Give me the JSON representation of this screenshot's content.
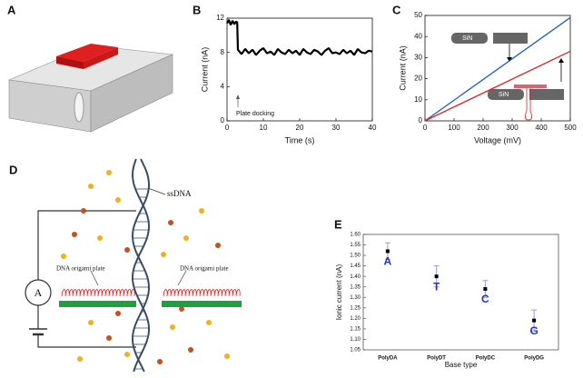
{
  "panel_labels": [
    "A",
    "B",
    "C",
    "D",
    "E"
  ],
  "chart_data": [
    {
      "type": "line",
      "x_label": "Time (s)",
      "y_label": "Current (nA)",
      "annotations": [
        "Plate docking"
      ],
      "x": [
        0,
        0.5,
        1,
        1.5,
        2,
        2.5,
        2.8,
        3,
        4,
        5,
        6,
        7,
        8,
        9,
        10,
        11,
        12,
        13,
        14,
        15,
        16,
        17,
        18,
        19,
        20,
        21,
        22,
        23,
        24,
        25,
        26,
        27,
        28,
        29,
        30,
        31,
        32,
        33,
        34,
        35,
        36,
        37,
        38,
        39,
        40
      ],
      "series": [
        {
          "color": "#000000",
          "values": [
            11.4,
            11.8,
            11.2,
            11.7,
            11.3,
            11.6,
            11.5,
            8.3,
            7.8,
            8.4,
            7.9,
            8.3,
            7.7,
            8.2,
            8.5,
            7.9,
            8.1,
            7.7,
            8.4,
            8.0,
            7.8,
            8.3,
            7.9,
            8.2,
            7.7,
            8.4,
            8.0,
            7.8,
            8.3,
            8.1,
            7.7,
            8.2,
            8.5,
            7.9,
            8.0,
            7.8,
            8.3,
            7.9,
            8.2,
            7.7,
            8.4,
            8.0,
            7.9,
            8.2,
            8.1
          ]
        }
      ],
      "xlim": [
        0,
        40
      ],
      "xticks": [
        0,
        10,
        20,
        30,
        40
      ],
      "ylim": [
        0,
        12
      ],
      "yticks": [
        0,
        4,
        8,
        12
      ]
    },
    {
      "type": "line",
      "x_label": "Voltage (mV)",
      "y_label": "Current (nA)",
      "annotations": [
        "SiN",
        "SiN"
      ],
      "x": [
        0,
        500
      ],
      "series": [
        {
          "color": "#1f5fbf",
          "values": [
            0,
            49
          ]
        },
        {
          "color": "#e02020",
          "values": [
            0,
            33
          ]
        }
      ],
      "xlim": [
        0,
        500
      ],
      "xticks": [
        0,
        100,
        200,
        300,
        400,
        500
      ],
      "ylim": [
        0,
        50
      ],
      "yticks": [
        0,
        10,
        20,
        30,
        40,
        50
      ]
    },
    {
      "type": "errorbar",
      "x_label": "Base type",
      "y_label": "Ionic current (nA)",
      "categories": [
        "PolyDA",
        "PolyDT",
        "PolyDC",
        "PolyDG"
      ],
      "values": [
        1.52,
        1.4,
        1.34,
        1.19
      ],
      "errors": [
        0.04,
        0.05,
        0.04,
        0.05
      ],
      "point_labels": [
        "A",
        "T",
        "C",
        "G"
      ],
      "color": "#000000",
      "error_color": "#9999dd",
      "label_color": "#2233cc",
      "ylim": [
        1.05,
        1.6
      ],
      "yticks": [
        1.05,
        {
          "value": 1.1,
          "label": "1.10"
        },
        1.15,
        {
          "value": 1.2,
          "label": "1.20"
        },
        1.25,
        {
          "value": 1.3,
          "label": "1.30"
        },
        1.35,
        {
          "value": 1.4,
          "label": "1.40"
        },
        1.45,
        {
          "value": 1.5,
          "label": "1.50"
        },
        1.55,
        {
          "value": 1.6,
          "label": "1.60"
        }
      ]
    }
  ],
  "diagram_d": {
    "ammeter": "A",
    "strand": "ssDNA",
    "plate_left": "DNA origami plate",
    "plate_right": "DNA origami plate"
  }
}
